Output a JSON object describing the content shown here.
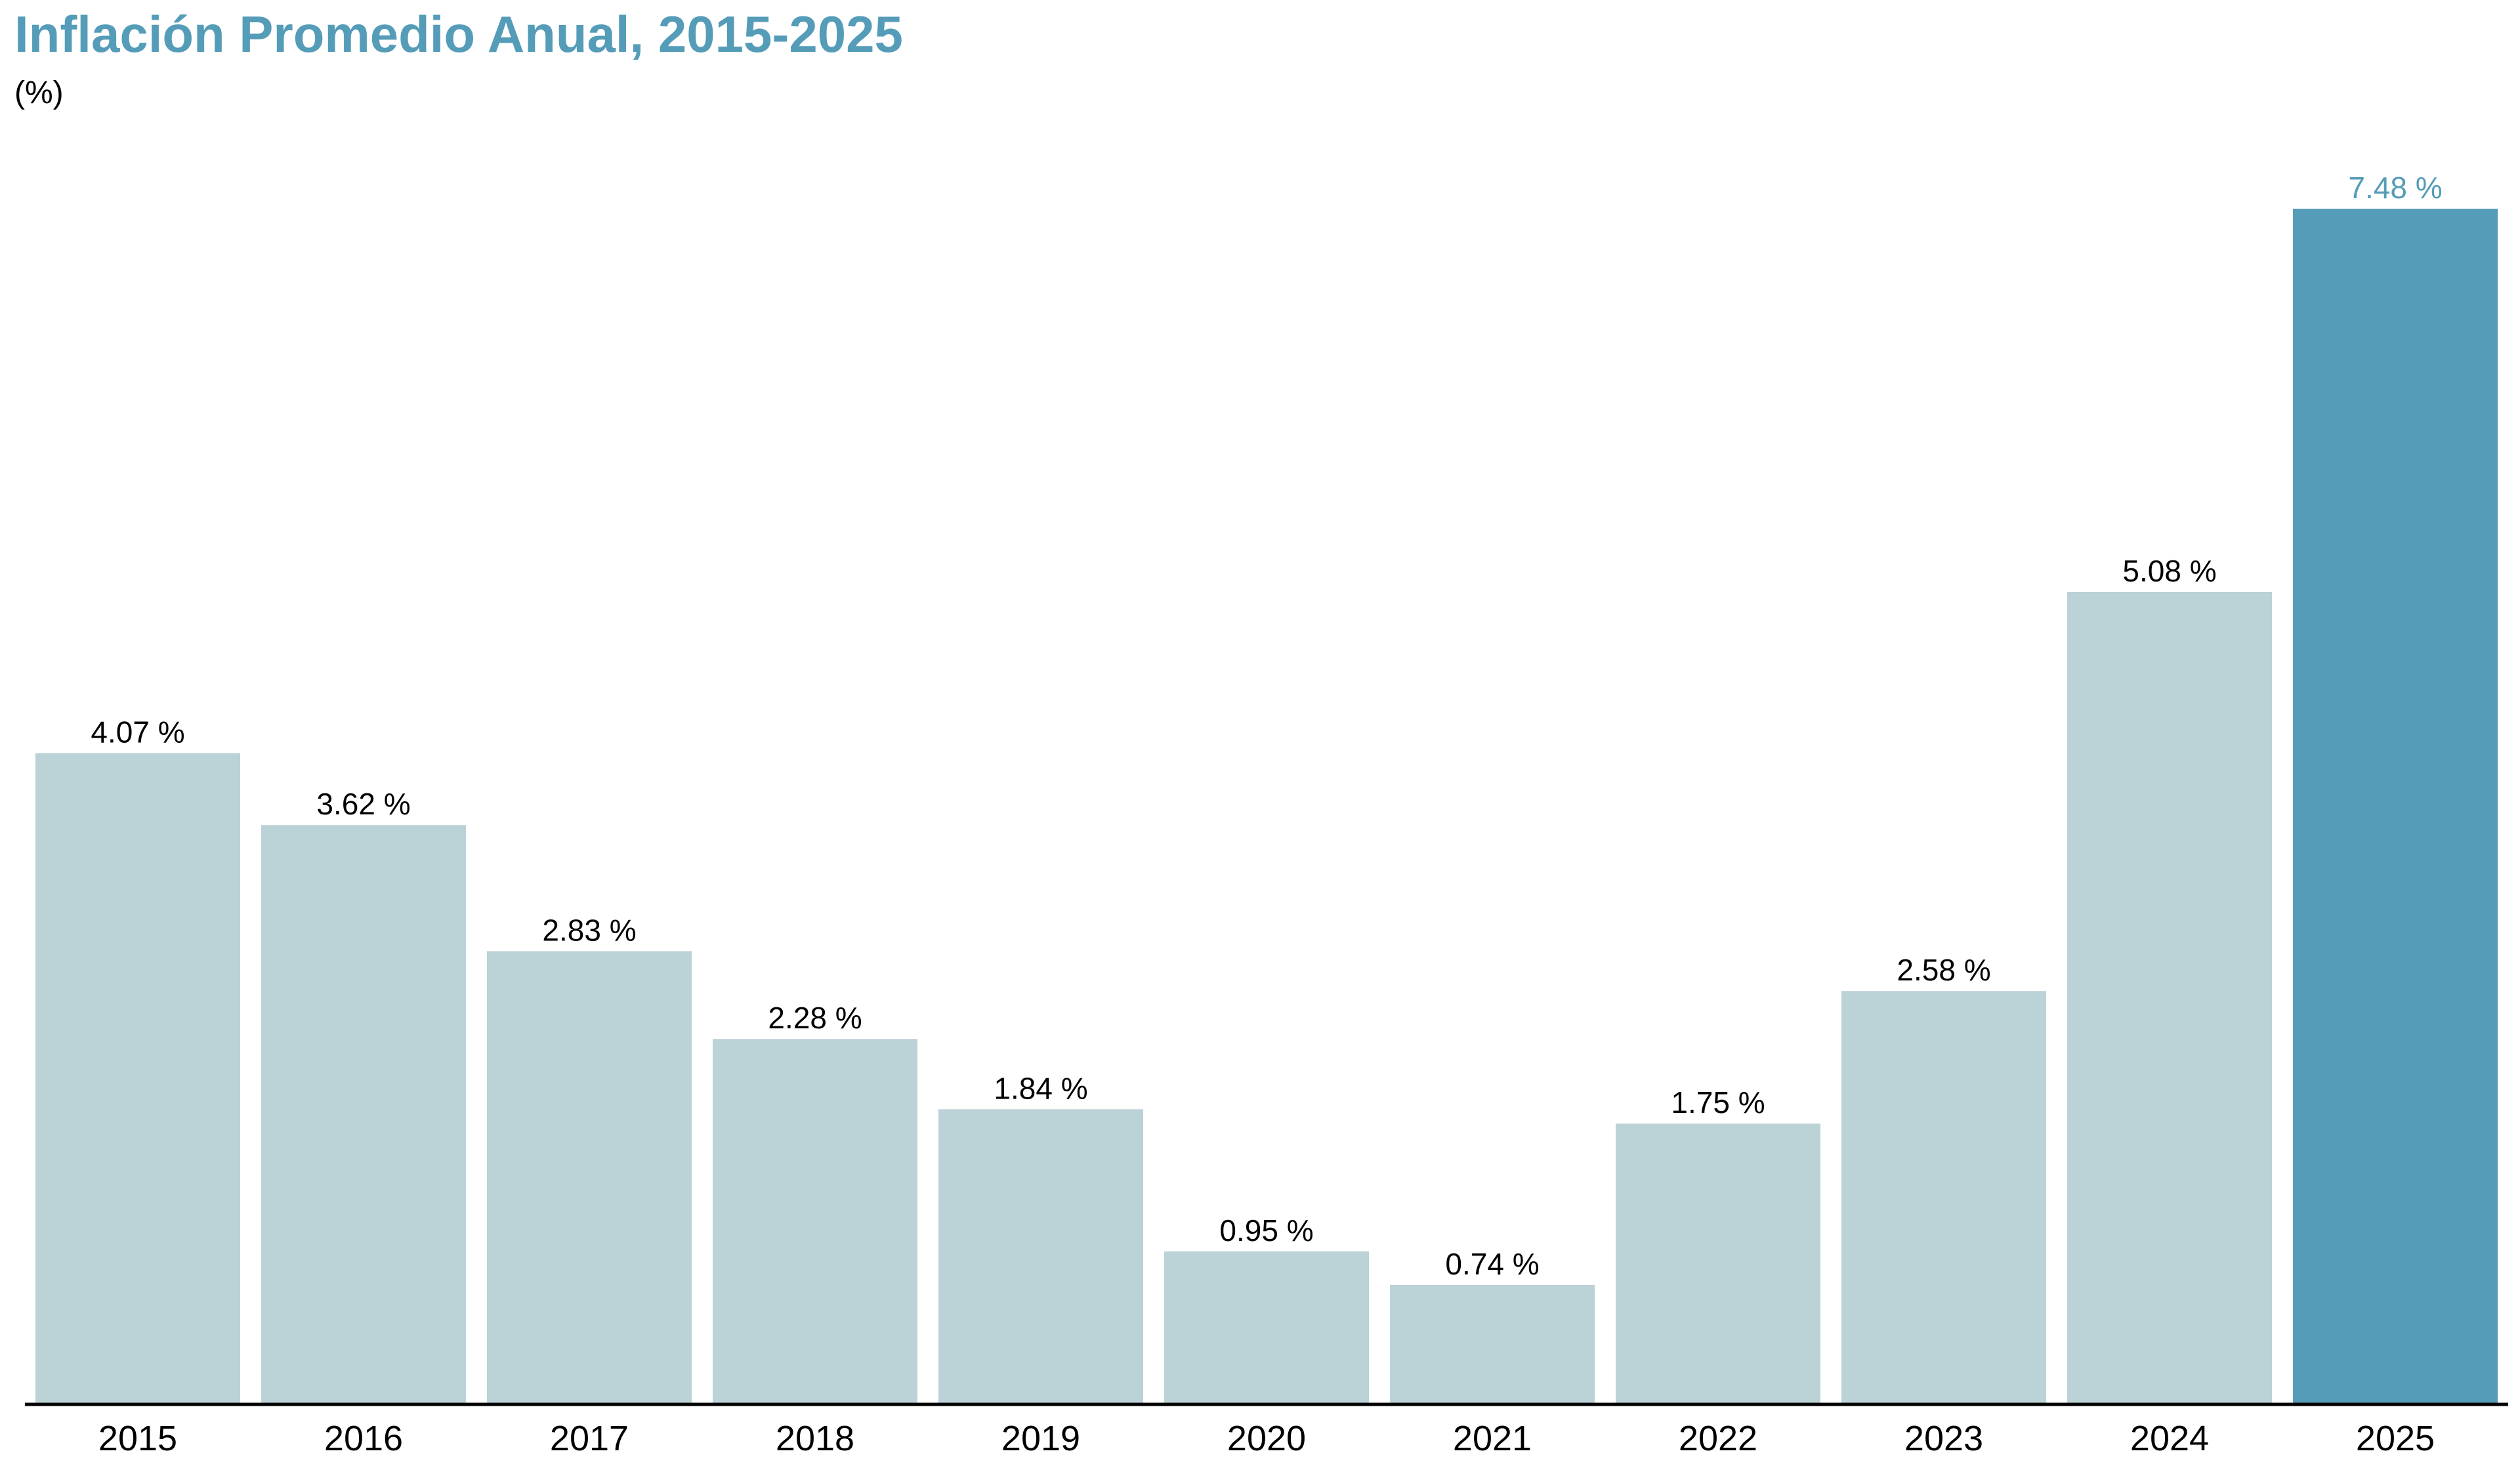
{
  "chart_data": {
    "type": "bar",
    "title": "Inflación Promedio Anual, 2015-2025",
    "subtitle": "(%)",
    "categories": [
      "2015",
      "2016",
      "2017",
      "2018",
      "2019",
      "2020",
      "2021",
      "2022",
      "2023",
      "2024",
      "2025"
    ],
    "values": [
      4.07,
      3.62,
      2.83,
      2.28,
      1.84,
      0.95,
      0.74,
      1.75,
      2.58,
      5.08,
      7.48
    ],
    "data_labels": [
      "4.07 %",
      "3.62 %",
      "2.83 %",
      "2.28 %",
      "1.84 %",
      "0.95 %",
      "0.74 %",
      "1.75 %",
      "2.58 %",
      "5.08 %",
      "7.48 %"
    ],
    "highlight_category": "2025",
    "xlabel": "",
    "ylabel": "",
    "ylim": [
      0,
      7.48
    ],
    "grid": false,
    "legend": "none",
    "colors": {
      "bar": "#bbd2d6",
      "highlight_bar": "#559cb8",
      "title": "#559cb8",
      "label": "#000000",
      "highlight_label": "#559cb8",
      "axis": "#000000"
    }
  }
}
